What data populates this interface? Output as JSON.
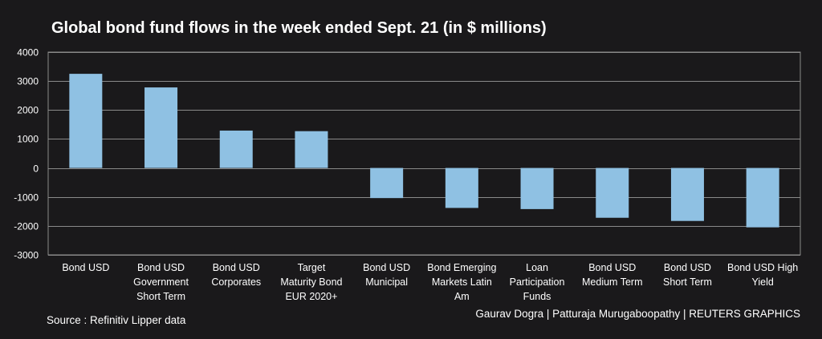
{
  "chart_data": {
    "type": "bar",
    "title": "Global bond fund flows in the week ended Sept. 21 (in $ millions)",
    "xlabel": "",
    "ylabel": "",
    "ylim": [
      -3000,
      4000
    ],
    "yticks": [
      4000,
      3000,
      2000,
      1000,
      0,
      -1000,
      -2000,
      -3000
    ],
    "grid": true,
    "categories": [
      [
        "Bond USD"
      ],
      [
        "Bond USD",
        "Government",
        "Short Term"
      ],
      [
        "Bond USD",
        "Corporates"
      ],
      [
        "Target",
        "Maturity Bond",
        "EUR 2020+"
      ],
      [
        "Bond USD",
        "Municipal"
      ],
      [
        "Bond Emerging",
        "Markets Latin",
        "Am"
      ],
      [
        "Loan",
        "Participation",
        "Funds"
      ],
      [
        "Bond USD",
        "Medium Term"
      ],
      [
        "Bond USD",
        "Short Term"
      ],
      [
        "Bond USD High",
        "Yield"
      ]
    ],
    "values": [
      3250,
      2780,
      1290,
      1270,
      -1040,
      -1380,
      -1420,
      -1720,
      -1830,
      -2050
    ],
    "bar_color": "#8fc1e3",
    "grid_color": "#8a8a8a",
    "source": "Source : Refinitiv Lipper data",
    "credit": "Gaurav Dogra | Patturaja Murugaboopathy | REUTERS GRAPHICS"
  }
}
